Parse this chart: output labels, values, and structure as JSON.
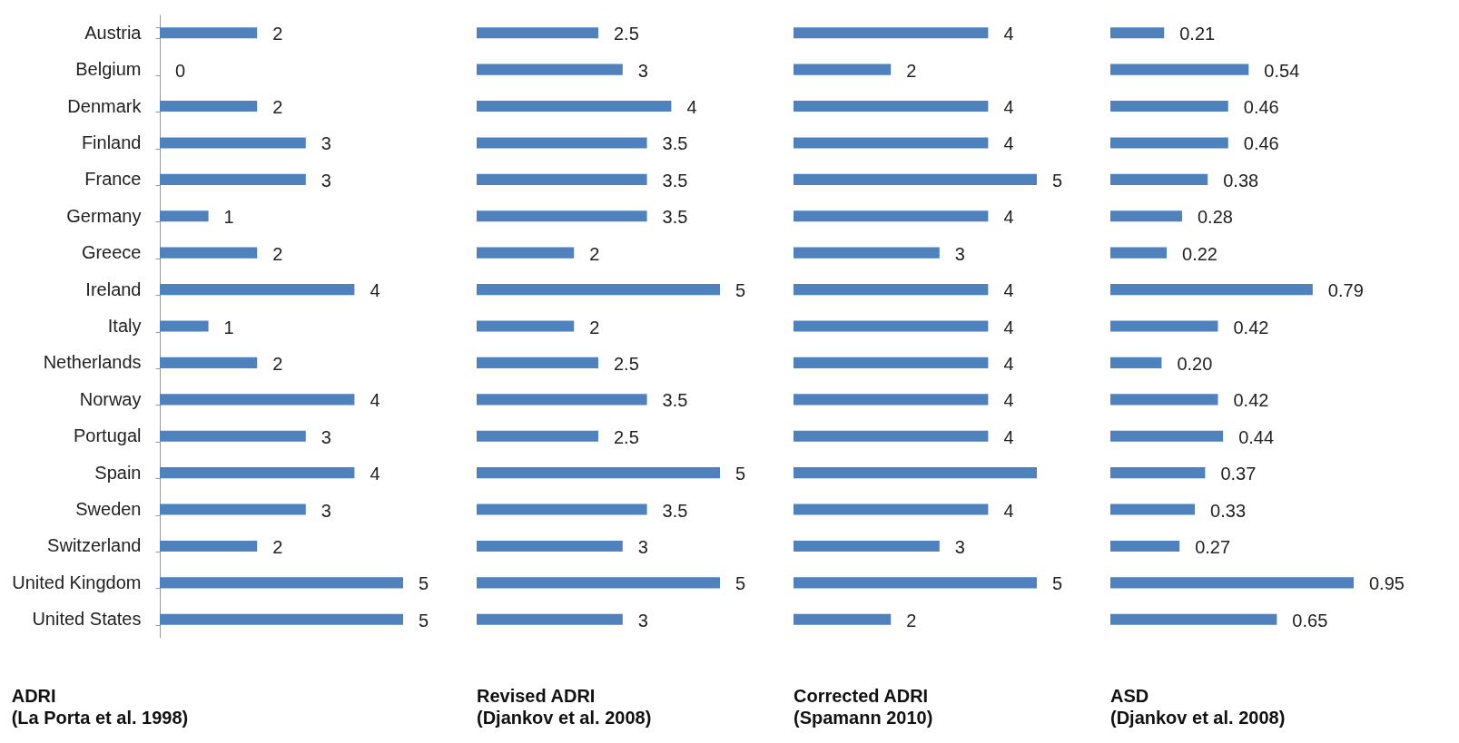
{
  "chart_data": [
    {
      "type": "bar",
      "orientation": "horizontal",
      "tick_labels": "y",
      "title": "ADRI",
      "subtitle": "(La Porta et al. 1998)",
      "color": "#4f81bd",
      "categories": [
        "Austria",
        "Belgium",
        "Denmark",
        "Finland",
        "France",
        "Germany",
        "Greece",
        "Ireland",
        "Italy",
        "Netherlands",
        "Norway",
        "Portugal",
        "Spain",
        "Sweden",
        "Switzerland",
        "United Kingdom",
        "United States"
      ],
      "values": [
        2,
        0,
        2,
        3,
        3,
        1,
        2,
        4,
        1,
        2,
        4,
        3,
        4,
        3,
        2,
        5,
        5
      ],
      "value_labels": [
        "2",
        "0",
        "2",
        "3",
        "3",
        "1",
        "2",
        "4",
        "1",
        "2",
        "4",
        "3",
        "4",
        "3",
        "2",
        "5",
        "5"
      ]
    },
    {
      "type": "bar",
      "orientation": "horizontal",
      "tick_labels": false,
      "title": "Revised  ADRI",
      "subtitle": "(Djankov et al. 2008)",
      "color": "#4f81bd",
      "values": [
        2.5,
        3,
        4,
        3.5,
        3.5,
        3.5,
        2,
        5,
        2,
        2.5,
        3.5,
        2.5,
        5,
        3.5,
        3,
        5,
        3
      ],
      "value_labels": [
        "2.5",
        "3",
        "4",
        "3.5",
        "3.5",
        "3.5",
        "2",
        "5",
        "2",
        "2.5",
        "3.5",
        "2.5",
        "5",
        "3.5",
        "3",
        "5",
        "3"
      ]
    },
    {
      "type": "bar",
      "orientation": "horizontal",
      "tick_labels": false,
      "title": "Corrected  ADRI",
      "subtitle": "(Spamann 2010)",
      "color": "#4f81bd",
      "values": [
        4,
        2,
        4,
        4,
        5,
        4,
        3,
        4,
        4,
        4,
        4,
        4,
        5,
        4,
        3,
        5,
        2
      ],
      "value_labels": [
        "4",
        "2",
        "4",
        "4",
        "5",
        "4",
        "3",
        "4",
        "4",
        "4",
        "4",
        "4",
        null,
        "4",
        "3",
        "5",
        "2"
      ]
    },
    {
      "type": "bar",
      "orientation": "horizontal",
      "tick_labels": false,
      "title": "ASD",
      "subtitle": "(Djankov et al. 2008)",
      "color": "#4f81bd",
      "values": [
        0.21,
        0.54,
        0.46,
        0.46,
        0.38,
        0.28,
        0.22,
        0.79,
        0.42,
        0.2,
        0.42,
        0.44,
        0.37,
        0.33,
        0.27,
        0.95,
        0.65
      ],
      "value_labels": [
        "0.21",
        "0.54",
        "0.46",
        "0.46",
        "0.38",
        "0.28",
        "0.22",
        "0.79",
        "0.42",
        "0.20",
        "0.42",
        "0.44",
        "0.37",
        "0.33",
        "0.27",
        "0.95",
        "0.65"
      ]
    }
  ]
}
